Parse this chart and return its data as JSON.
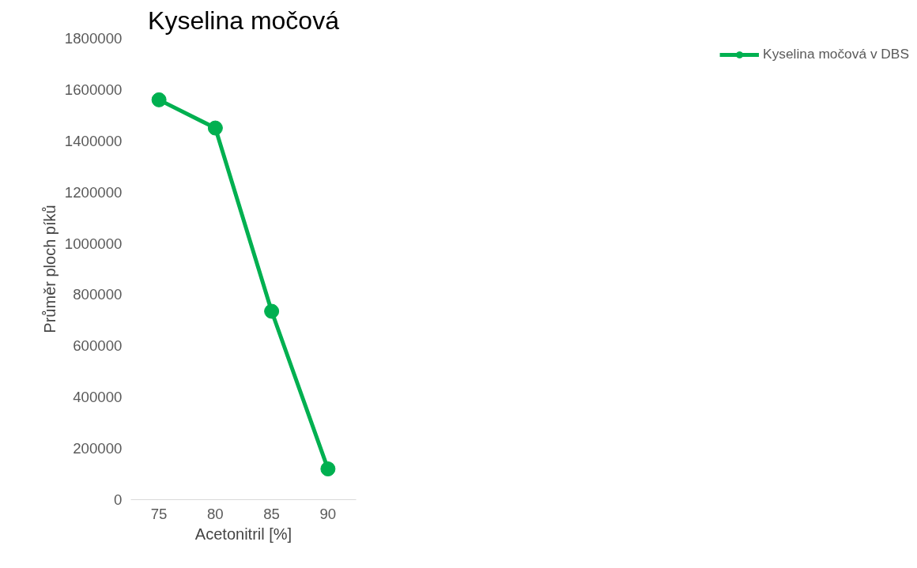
{
  "chart_data": {
    "type": "line",
    "title": "Kyselina močová",
    "xlabel": "Acetonitril [%]",
    "ylabel": "Průměr ploch píků",
    "categories": [
      "75",
      "80",
      "85",
      "90"
    ],
    "series": [
      {
        "name": "Kyselina močová v DBS",
        "color": "#00b050",
        "values": [
          1560000,
          1450000,
          735000,
          120000
        ]
      }
    ],
    "ylim": [
      0,
      1800000
    ],
    "yticks": [
      0,
      200000,
      400000,
      600000,
      800000,
      1000000,
      1200000,
      1400000,
      1600000,
      1800000
    ],
    "grid": false,
    "legend": "right",
    "marker": "circle",
    "line_style": "solid"
  }
}
